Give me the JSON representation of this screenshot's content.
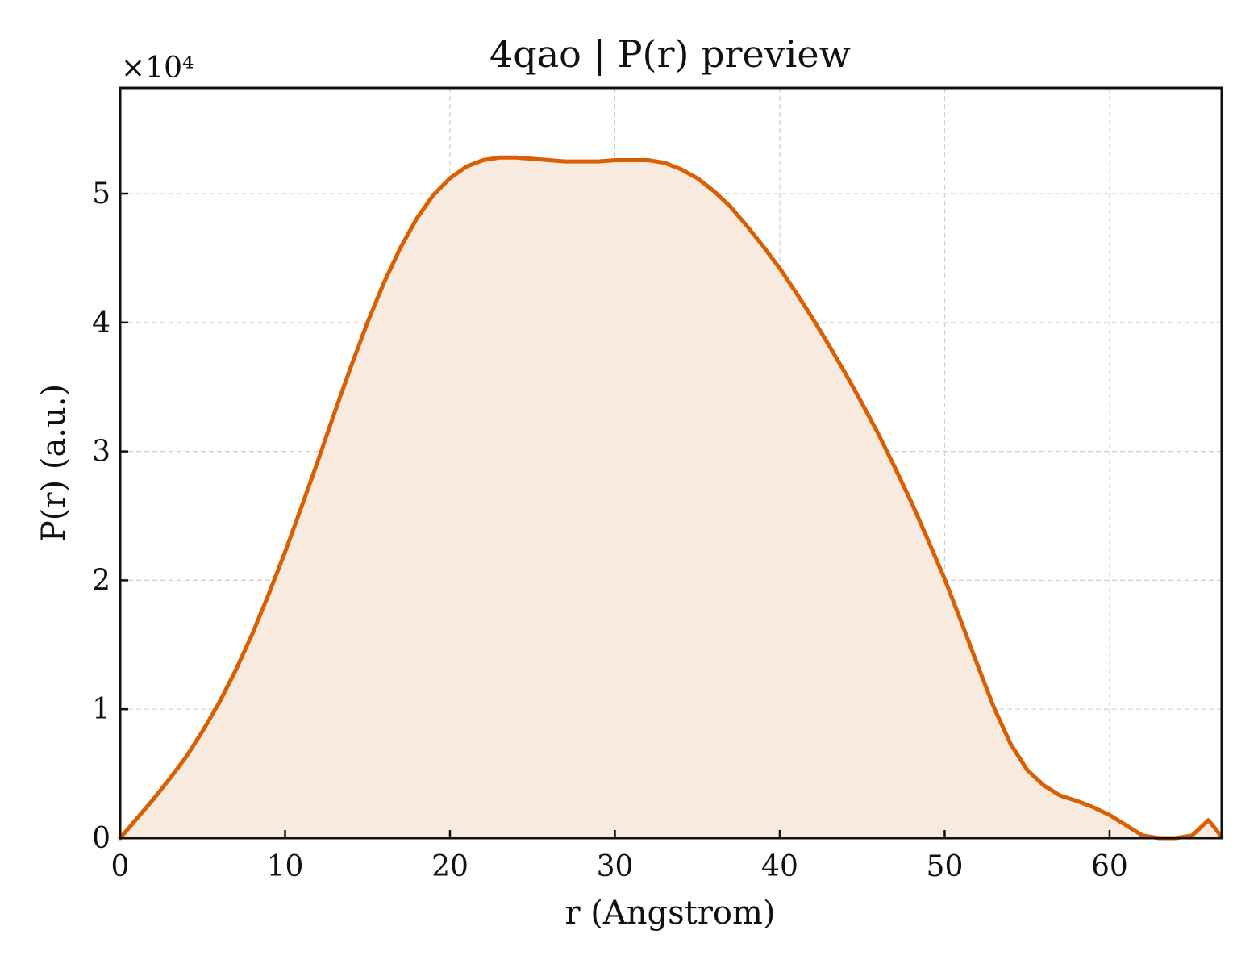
{
  "chart_data": {
    "type": "area",
    "title": "4qao | P(r) preview",
    "xlabel": "r (Angstrom)",
    "ylabel": "P(r) (a.u.)",
    "y_multiplier": "×10⁴",
    "xlim": [
      0,
      66.8
    ],
    "ylim": [
      0,
      5.82
    ],
    "xticks": [
      0,
      10,
      20,
      30,
      40,
      50,
      60
    ],
    "yticks": [
      0,
      1,
      2,
      3,
      4,
      5
    ],
    "xtick_labels": [
      "0",
      "10",
      "20",
      "30",
      "40",
      "50",
      "60"
    ],
    "ytick_labels": [
      "0",
      "1",
      "2",
      "3",
      "4",
      "5"
    ],
    "grid": true,
    "line_color": "#d95f02",
    "fill_color": "#f8eadf",
    "series": [
      {
        "x": [
          0,
          1,
          2,
          3,
          4,
          5,
          6,
          7,
          8,
          9,
          10,
          11,
          12,
          13,
          14,
          15,
          16,
          17,
          18,
          19,
          20,
          21,
          22,
          23,
          24,
          25,
          26,
          27,
          28,
          29,
          30,
          31,
          32,
          33,
          34,
          35,
          36,
          37,
          38,
          39,
          40,
          41,
          42,
          43,
          44,
          45,
          46,
          47,
          48,
          49,
          50,
          51,
          52,
          53,
          54,
          55,
          56,
          57,
          58,
          59,
          60,
          61,
          62,
          63,
          64,
          65,
          66,
          66.8
        ],
        "y": [
          0.0,
          0.15,
          0.3,
          0.46,
          0.63,
          0.83,
          1.05,
          1.3,
          1.58,
          1.89,
          2.22,
          2.57,
          2.93,
          3.3,
          3.66,
          4.0,
          4.31,
          4.58,
          4.81,
          4.99,
          5.12,
          5.21,
          5.26,
          5.28,
          5.28,
          5.27,
          5.26,
          5.25,
          5.25,
          5.25,
          5.26,
          5.26,
          5.26,
          5.24,
          5.19,
          5.12,
          5.02,
          4.9,
          4.75,
          4.59,
          4.42,
          4.23,
          4.03,
          3.82,
          3.6,
          3.37,
          3.13,
          2.87,
          2.6,
          2.31,
          2.01,
          1.68,
          1.34,
          1.01,
          0.73,
          0.53,
          0.41,
          0.33,
          0.29,
          0.24,
          0.18,
          0.1,
          0.02,
          0.0,
          0.0,
          0.02,
          0.14,
          0.01
        ]
      }
    ]
  }
}
